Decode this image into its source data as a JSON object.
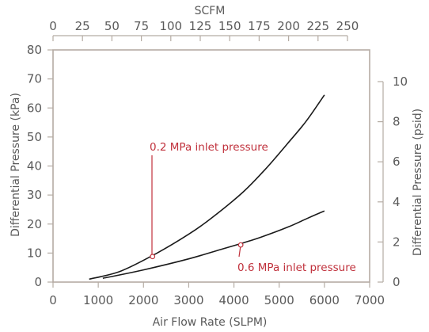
{
  "chart_data": {
    "type": "line",
    "title": "",
    "xlabel": "Air Flow Rate (SLPM)",
    "ylabel": "Differential Pressure (kPa)",
    "x2label": "SCFM",
    "y2label": "Differential Pressure (psid)",
    "xlim": [
      0,
      7000
    ],
    "ylim": [
      0,
      80
    ],
    "x2lim": [
      0,
      250
    ],
    "y2lim": [
      0,
      10
    ],
    "xticks": [
      "0",
      "1000",
      "2000",
      "3000",
      "4000",
      "5000",
      "6000",
      "7000"
    ],
    "yticks": [
      "0",
      "10",
      "20",
      "30",
      "40",
      "50",
      "60",
      "70",
      "80"
    ],
    "x2ticks": [
      "0",
      "25",
      "50",
      "75",
      "100",
      "125",
      "150",
      "175",
      "200",
      "225",
      "250"
    ],
    "y2ticks": [
      "0",
      "2",
      "4",
      "6",
      "8",
      "10"
    ],
    "grid": false,
    "series": [
      {
        "color": "#1a1a1a",
        "x": [
          800,
          1500,
          2300,
          3000,
          3500,
          4200,
          4700,
          5200,
          5600,
          6000
        ],
        "y": [
          1,
          3.8,
          10,
          16.5,
          22,
          31,
          39,
          48,
          55.5,
          64.5
        ]
      },
      {
        "color": "#1a1a1a",
        "x": [
          1100,
          2000,
          3000,
          3700,
          4200,
          4600,
          5200,
          5600,
          6000
        ],
        "y": [
          1.3,
          4.2,
          8,
          11.2,
          13.5,
          15.5,
          19,
          21.8,
          24.5
        ]
      }
    ],
    "annotations": [
      {
        "text": "0.2 MPa inlet pressure",
        "point": [
          2200,
          8.8
        ],
        "color": "#c0313c"
      },
      {
        "text": "0.6 MPa inlet pressure",
        "point": [
          4150,
          12.8
        ],
        "color": "#c0313c"
      }
    ]
  }
}
